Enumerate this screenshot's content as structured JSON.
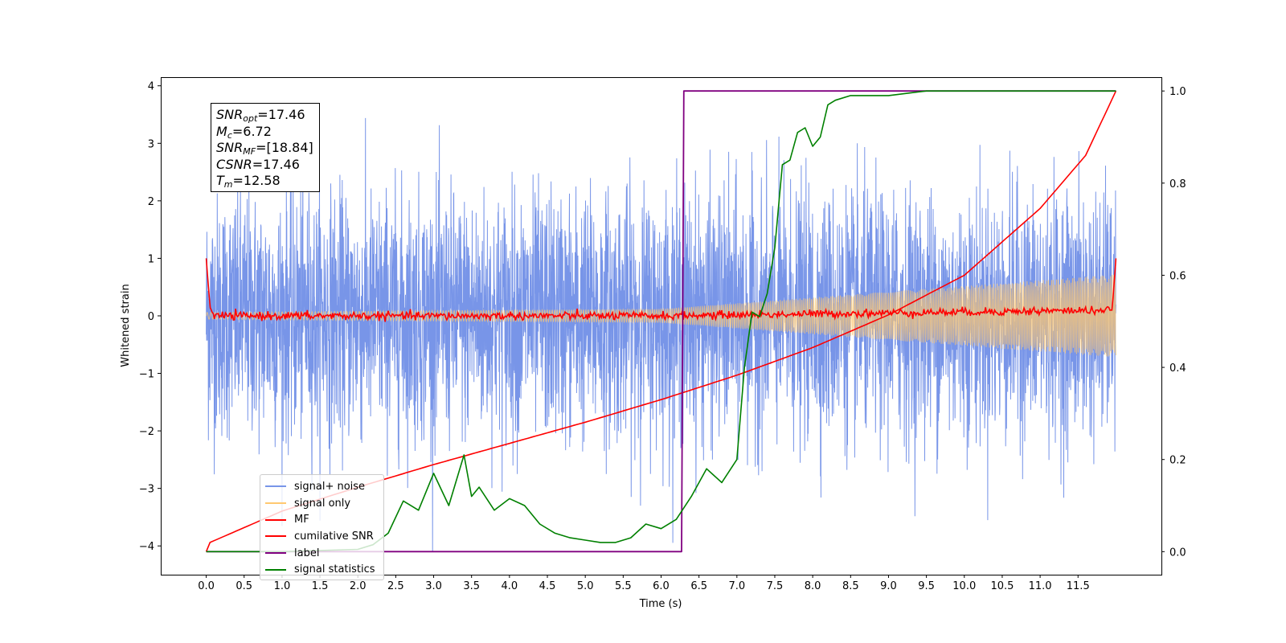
{
  "chart_data": {
    "type": "line",
    "xlabel": "Time (s)",
    "ylabel": "Whitened strain",
    "xlim": [
      -0.6,
      12.6
    ],
    "ylim": [
      -4.5,
      4.15
    ],
    "y2lim": [
      -0.05,
      1.03
    ],
    "x_ticks": [
      "0.0",
      "0.5",
      "1.0",
      "1.5",
      "2.0",
      "2.5",
      "3.0",
      "3.5",
      "4.0",
      "4.5",
      "5.0",
      "5.5",
      "6.0",
      "6.5",
      "7.0",
      "7.5",
      "8.0",
      "8.5",
      "9.0",
      "9.5",
      "10.0",
      "10.5",
      "11.0",
      "11.5"
    ],
    "y_ticks": [
      "4",
      "3",
      "2",
      "1",
      "0",
      "−1",
      "−2",
      "−3",
      "−4"
    ],
    "y2_ticks": [
      "1.0",
      "0.8",
      "0.6",
      "0.4",
      "0.2",
      "0.0"
    ],
    "legend_position": "lower-left",
    "annotations": [
      {
        "symbol": "SNR",
        "sub": "opt",
        "value": "=17.46"
      },
      {
        "symbol": "M",
        "sub": "c",
        "value": "=6.72"
      },
      {
        "symbol": "SNR",
        "sub": "MF",
        "value": "=[18.84]"
      },
      {
        "symbol": "CSNR",
        "sub": "",
        "value": "=17.46"
      },
      {
        "symbol": "T",
        "sub": "m",
        "value": "=12.58"
      }
    ],
    "series": [
      {
        "name": "signal+ noise",
        "color": "#7895e8",
        "axis": "left",
        "description_values": {
          "x_range": [
            0,
            12
          ],
          "amplitude_range": [
            -4.1,
            3.8
          ]
        }
      },
      {
        "name": "signal only",
        "color": "#ffc870",
        "axis": "left",
        "envelope": {
          "x": [
            0,
            6,
            12
          ],
          "amplitude": [
            0.06,
            0.12,
            0.72
          ]
        }
      },
      {
        "name": "MF",
        "color": "#ff0000",
        "axis": "left",
        "x": [
          0,
          0.05,
          0.1,
          6,
          11.95,
          12
        ],
        "y": [
          1.0,
          0.15,
          0.0,
          0.0,
          0.1,
          1.0
        ]
      },
      {
        "name": "cumilative SNR",
        "color": "#ff0000",
        "axis": "right",
        "x": [
          0,
          0.05,
          1,
          2,
          3,
          4,
          5,
          6,
          7,
          8,
          9,
          10,
          11,
          11.6,
          12
        ],
        "y": [
          0,
          0.02,
          0.088,
          0.14,
          0.189,
          0.235,
          0.281,
          0.33,
          0.383,
          0.443,
          0.514,
          0.6,
          0.745,
          0.86,
          1.0
        ]
      },
      {
        "name": "label",
        "color": "#800080",
        "axis": "right",
        "x": [
          0,
          6.27,
          6.3,
          12
        ],
        "y": [
          0,
          0,
          1,
          1
        ]
      },
      {
        "name": "signal statistics",
        "color": "#008000",
        "axis": "right",
        "x": [
          0,
          1,
          2,
          2.2,
          2.4,
          2.6,
          2.8,
          3.0,
          3.2,
          3.4,
          3.5,
          3.6,
          3.8,
          4.0,
          4.2,
          4.4,
          4.6,
          4.8,
          5.0,
          5.2,
          5.4,
          5.6,
          5.8,
          6.0,
          6.2,
          6.4,
          6.6,
          6.8,
          7.0,
          7.1,
          7.2,
          7.3,
          7.4,
          7.5,
          7.6,
          7.7,
          7.8,
          7.9,
          8.0,
          8.1,
          8.2,
          8.3,
          8.5,
          8.7,
          9.0,
          9.5,
          10,
          11,
          12
        ],
        "y": [
          0,
          0.0,
          0.005,
          0.015,
          0.04,
          0.11,
          0.09,
          0.17,
          0.1,
          0.21,
          0.12,
          0.14,
          0.09,
          0.115,
          0.1,
          0.06,
          0.04,
          0.03,
          0.025,
          0.02,
          0.02,
          0.03,
          0.06,
          0.05,
          0.07,
          0.12,
          0.18,
          0.15,
          0.2,
          0.4,
          0.52,
          0.51,
          0.56,
          0.66,
          0.84,
          0.85,
          0.91,
          0.92,
          0.88,
          0.9,
          0.97,
          0.98,
          0.99,
          0.99,
          0.99,
          1.0,
          1.0,
          1.0,
          1.0
        ]
      }
    ]
  }
}
